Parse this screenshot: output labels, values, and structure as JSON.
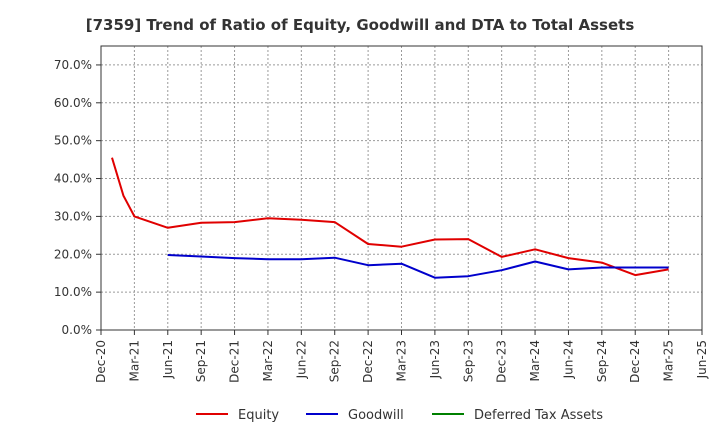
{
  "chart_data": {
    "type": "line",
    "title": "[7359]  Trend of Ratio of Equity, Goodwill and DTA to Total Assets",
    "xlabel": "",
    "ylabel": "",
    "ylim": [
      0,
      75
    ],
    "y_ticks": [
      0,
      10,
      20,
      30,
      40,
      50,
      60,
      70
    ],
    "y_tick_labels": [
      "0.0%",
      "10.0%",
      "20.0%",
      "30.0%",
      "40.0%",
      "50.0%",
      "60.0%",
      "70.0%"
    ],
    "x_tick_labels": [
      "Dec-20",
      "Mar-21",
      "Jun-21",
      "Sep-21",
      "Dec-21",
      "Mar-22",
      "Jun-22",
      "Sep-22",
      "Dec-22",
      "Mar-23",
      "Jun-23",
      "Sep-23",
      "Dec-23",
      "Mar-24",
      "Jun-24",
      "Sep-24",
      "Dec-24",
      "Mar-25",
      "Jun-25"
    ],
    "grid": true,
    "legend_position": "bottom",
    "series": [
      {
        "name": "Equity",
        "color": "#e00000",
        "points": [
          [
            0.33,
            45.5
          ],
          [
            0.67,
            35.5
          ],
          [
            1,
            30
          ],
          [
            2,
            27
          ],
          [
            3,
            28.3
          ],
          [
            4,
            28.5
          ],
          [
            5,
            29.5
          ],
          [
            6,
            29.1
          ],
          [
            7,
            28.5
          ],
          [
            8,
            22.7
          ],
          [
            9,
            22
          ],
          [
            10,
            23.9
          ],
          [
            11,
            24
          ],
          [
            12,
            19.3
          ],
          [
            13,
            21.3
          ],
          [
            14,
            19
          ],
          [
            15,
            17.8
          ],
          [
            16,
            14.5
          ],
          [
            17,
            16
          ]
        ]
      },
      {
        "name": "Goodwill",
        "color": "#0000cc",
        "points": [
          [
            2,
            19.8
          ],
          [
            3,
            19.4
          ],
          [
            4,
            19
          ],
          [
            5,
            18.7
          ],
          [
            6,
            18.7
          ],
          [
            7,
            19.1
          ],
          [
            8,
            17.1
          ],
          [
            9,
            17.5
          ],
          [
            10,
            13.8
          ],
          [
            11,
            14.2
          ],
          [
            12,
            15.8
          ],
          [
            13,
            18.1
          ],
          [
            14,
            16
          ],
          [
            15,
            16.5
          ],
          [
            16,
            16.5
          ],
          [
            17,
            16.5
          ]
        ]
      },
      {
        "name": "Deferred Tax Assets",
        "color": "#008000",
        "points": []
      }
    ]
  }
}
